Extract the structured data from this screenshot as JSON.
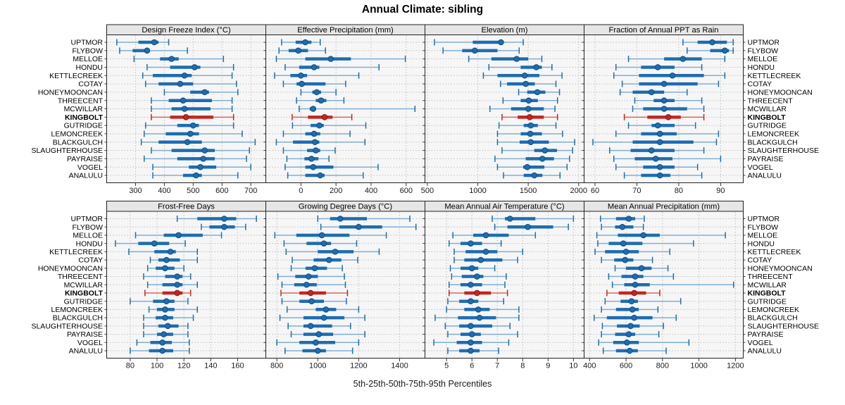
{
  "title": "Annual Climate: sibling",
  "caption": "5th-25th-50th-75th-95th Percentiles",
  "colors": {
    "blue_whisker": "#7FAFD6",
    "blue_main": "#1D6DB1",
    "blue_dot_edge": "#0F4C86",
    "red_whisker": "#D4685E",
    "red_main": "#C3261F",
    "red_dot_edge": "#8E1713",
    "gridline": "#BFBFBF",
    "strip_bg": "#E6E6E6",
    "panel_bg": "#F6F6F6",
    "border": "#222222",
    "tick": "#333333"
  },
  "chart_data": {
    "type": "table",
    "subtype": "trellis-percentile-dotplot",
    "percentile_labels": [
      "5th",
      "25th",
      "50th",
      "75th",
      "95th"
    ],
    "highlight_site": "KINGBOLT",
    "sites": [
      "UPTMOR",
      "FLYBOW",
      "MELLOE",
      "HONDU",
      "KETTLECREEK",
      "COTAY",
      "HONEYMOONCAN",
      "THREECENT",
      "MCWILLAR",
      "KINGBOLT",
      "GUTRIDGE",
      "LEMONCREEK",
      "BLACKGULCH",
      "SLAUGHTERHOUSE",
      "PAYRAISE",
      "VOGEL",
      "ANALULU"
    ],
    "panels": [
      {
        "title": "Design Freeze Index (°C)",
        "grid_row": 0,
        "grid_col": 0,
        "xlim": [
          200,
          752
        ],
        "ticks": [
          300,
          400,
          500,
          600,
          700
        ],
        "grid": [
          300,
          400,
          500,
          600,
          700
        ],
        "values": [
          [
            235,
            310,
            365,
            380,
            415
          ],
          [
            245,
            290,
            340,
            350,
            480
          ],
          [
            295,
            385,
            425,
            450,
            605
          ],
          [
            340,
            420,
            505,
            525,
            640
          ],
          [
            325,
            360,
            470,
            495,
            635
          ],
          [
            335,
            380,
            455,
            500,
            650
          ],
          [
            400,
            490,
            540,
            555,
            655
          ],
          [
            355,
            415,
            465,
            565,
            635
          ],
          [
            355,
            425,
            470,
            560,
            635
          ],
          [
            355,
            420,
            475,
            570,
            640
          ],
          [
            335,
            445,
            500,
            520,
            640
          ],
          [
            330,
            405,
            490,
            520,
            670
          ],
          [
            320,
            380,
            480,
            530,
            715
          ],
          [
            355,
            425,
            540,
            575,
            695
          ],
          [
            330,
            445,
            535,
            575,
            685
          ],
          [
            360,
            485,
            525,
            580,
            700
          ],
          [
            360,
            465,
            510,
            530,
            655
          ]
        ]
      },
      {
        "title": "Effective Precipitation (mm)",
        "grid_row": 0,
        "grid_col": 1,
        "xlim": [
          -200,
          707
        ],
        "ticks": [
          0,
          200,
          400,
          600
        ],
        "grid": [
          0,
          200,
          400,
          600
        ],
        "values": [
          [
            -110,
            -30,
            25,
            60,
            110
          ],
          [
            -125,
            -70,
            -15,
            40,
            140
          ],
          [
            -140,
            25,
            170,
            285,
            595
          ],
          [
            -90,
            -10,
            75,
            105,
            445
          ],
          [
            -150,
            -60,
            0,
            35,
            330
          ],
          [
            -100,
            -25,
            5,
            140,
            255
          ],
          [
            0,
            65,
            90,
            115,
            200
          ],
          [
            -25,
            85,
            115,
            145,
            245
          ],
          [
            -10,
            50,
            70,
            85,
            650
          ],
          [
            -50,
            40,
            135,
            180,
            290
          ],
          [
            -48,
            55,
            105,
            130,
            370
          ],
          [
            -100,
            25,
            75,
            110,
            280
          ],
          [
            -140,
            -45,
            80,
            105,
            365
          ],
          [
            -100,
            35,
            85,
            110,
            195
          ],
          [
            -80,
            20,
            60,
            100,
            160
          ],
          [
            -90,
            25,
            70,
            185,
            440
          ],
          [
            -75,
            25,
            110,
            135,
            355
          ]
        ]
      },
      {
        "title": "Elevation (m)",
        "grid_row": 0,
        "grid_col": 2,
        "xlim": [
          476,
          2054
        ],
        "ticks": [
          500,
          1000,
          1500,
          2000
        ],
        "grid": [
          500,
          1000,
          1500,
          2000
        ],
        "values": [
          [
            570,
            950,
            1230,
            1250,
            1450
          ],
          [
            655,
            845,
            970,
            1195,
            1410
          ],
          [
            910,
            1135,
            1385,
            1500,
            1635
          ],
          [
            1110,
            1425,
            1580,
            1635,
            1735
          ],
          [
            1055,
            1195,
            1465,
            1610,
            1835
          ],
          [
            1225,
            1290,
            1475,
            1565,
            1775
          ],
          [
            1405,
            1490,
            1590,
            1670,
            1810
          ],
          [
            1250,
            1425,
            1505,
            1595,
            1790
          ],
          [
            1120,
            1330,
            1500,
            1655,
            1765
          ],
          [
            1240,
            1395,
            1515,
            1655,
            1790
          ],
          [
            1210,
            1455,
            1525,
            1595,
            1775
          ],
          [
            1195,
            1425,
            1520,
            1635,
            1840
          ],
          [
            1195,
            1415,
            1525,
            1705,
            1960
          ],
          [
            1240,
            1560,
            1665,
            1785,
            1940
          ],
          [
            1170,
            1475,
            1640,
            1755,
            1910
          ],
          [
            1195,
            1450,
            1490,
            1660,
            1885
          ],
          [
            1255,
            1455,
            1560,
            1640,
            1815
          ]
        ]
      },
      {
        "title": "Fraction of Annual PPT as Rain",
        "grid_row": 0,
        "grid_col": 3,
        "xlim": [
          57.4,
          95.4
        ],
        "ticks": [
          60,
          70,
          80,
          90
        ],
        "grid": [
          60,
          70,
          80,
          90
        ],
        "values": [
          [
            81,
            84.5,
            88,
            91.5,
            93
          ],
          [
            82,
            87.5,
            91,
            92,
            93
          ],
          [
            68,
            76.5,
            81,
            85.5,
            91
          ],
          [
            65,
            71,
            75,
            79,
            85.5
          ],
          [
            64.5,
            70.5,
            78.5,
            86,
            91
          ],
          [
            66.5,
            70.5,
            76.5,
            84.5,
            89.5
          ],
          [
            66,
            69,
            73.5,
            76.5,
            82
          ],
          [
            69.5,
            74,
            76.5,
            79,
            85.5
          ],
          [
            69,
            71.5,
            76.5,
            82,
            86
          ],
          [
            67,
            72.5,
            77.5,
            80.5,
            86
          ],
          [
            68,
            73.5,
            75,
            79,
            84
          ],
          [
            65,
            71,
            75.5,
            79.5,
            89.5
          ],
          [
            59.5,
            69,
            75.5,
            83.5,
            89
          ],
          [
            63.5,
            68.5,
            73.5,
            79,
            86
          ],
          [
            64.5,
            69.5,
            74.5,
            78.5,
            90
          ],
          [
            65,
            71.5,
            75.5,
            79,
            84.5
          ],
          [
            67,
            71,
            75.5,
            78,
            85.5
          ]
        ]
      },
      {
        "title": "Frost-Free Days",
        "grid_row": 1,
        "grid_col": 0,
        "xlim": [
          62.5,
          181
        ],
        "ticks": [
          80,
          100,
          120,
          140,
          160
        ],
        "grid": [
          80,
          100,
          120,
          140,
          160,
          180
        ],
        "values": [
          [
            115,
            130,
            150,
            159,
            174
          ],
          [
            133,
            139,
            150,
            158,
            166
          ],
          [
            84,
            105,
            116,
            134,
            148
          ],
          [
            69,
            86,
            98,
            109,
            121
          ],
          [
            79,
            98,
            110,
            114,
            130
          ],
          [
            95,
            101,
            107,
            117,
            130
          ],
          [
            93,
            99,
            106,
            113,
            120
          ],
          [
            90,
            106,
            115,
            119,
            125
          ],
          [
            93,
            104,
            115,
            119,
            130
          ],
          [
            91,
            104,
            115,
            119,
            125
          ],
          [
            80,
            97,
            107,
            113,
            123
          ],
          [
            94,
            100,
            106,
            113,
            130
          ],
          [
            90,
            99,
            106,
            112,
            127
          ],
          [
            90,
            101,
            108,
            116,
            123
          ],
          [
            90,
            100,
            105,
            112,
            123
          ],
          [
            85,
            95,
            104,
            111,
            124
          ],
          [
            80,
            94,
            104,
            112,
            124
          ]
        ]
      },
      {
        "title": "Growing Degree Days (°C)",
        "grid_row": 1,
        "grid_col": 1,
        "xlim": [
          746,
          1524
        ],
        "ticks": [
          800,
          1000,
          1200,
          1400
        ],
        "grid": [
          800,
          1000,
          1200,
          1400
        ],
        "values": [
          [
            1000,
            1060,
            1110,
            1240,
            1450
          ],
          [
            1015,
            1105,
            1200,
            1315,
            1480
          ],
          [
            790,
            895,
            1020,
            1155,
            1335
          ],
          [
            835,
            945,
            1030,
            1065,
            1190
          ],
          [
            845,
            1000,
            1085,
            1175,
            1300
          ],
          [
            875,
            980,
            1055,
            1115,
            1195
          ],
          [
            870,
            940,
            985,
            1045,
            1120
          ],
          [
            805,
            890,
            955,
            1000,
            1130
          ],
          [
            825,
            885,
            945,
            995,
            1135
          ],
          [
            820,
            910,
            965,
            1040,
            1145
          ],
          [
            825,
            910,
            970,
            1030,
            1140
          ],
          [
            850,
            990,
            1040,
            1090,
            1200
          ],
          [
            815,
            930,
            1030,
            1130,
            1230
          ],
          [
            855,
            930,
            965,
            1070,
            1160
          ],
          [
            870,
            930,
            1005,
            1075,
            1230
          ],
          [
            800,
            910,
            990,
            1085,
            1200
          ],
          [
            840,
            925,
            1000,
            1040,
            1170
          ]
        ]
      },
      {
        "title": "Mean Annual Air Temperature (°C)",
        "grid_row": 1,
        "grid_col": 2,
        "xlim": [
          4.15,
          10.42
        ],
        "ticks": [
          5,
          6,
          7,
          8,
          9,
          10
        ],
        "grid": [
          5,
          6,
          7,
          8,
          9,
          10
        ],
        "values": [
          [
            6.8,
            7.3,
            7.5,
            8.5,
            10.0
          ],
          [
            6.9,
            7.4,
            8.2,
            9.2,
            9.8
          ],
          [
            5.25,
            6.05,
            6.55,
            7.45,
            8.5
          ],
          [
            5.1,
            5.55,
            5.95,
            6.4,
            7.15
          ],
          [
            5.3,
            5.75,
            6.55,
            7.0,
            8.0
          ],
          [
            5.3,
            5.7,
            6.35,
            7.2,
            7.8
          ],
          [
            5.15,
            5.55,
            6.0,
            6.25,
            6.9
          ],
          [
            5.2,
            5.6,
            6.2,
            6.45,
            7.35
          ],
          [
            5.1,
            5.55,
            5.95,
            6.4,
            7.3
          ],
          [
            5.1,
            5.7,
            6.2,
            6.75,
            7.4
          ],
          [
            5.05,
            5.5,
            5.95,
            6.25,
            7.25
          ],
          [
            5.0,
            5.7,
            6.25,
            6.7,
            7.85
          ],
          [
            4.55,
            5.45,
            6.3,
            6.95,
            7.85
          ],
          [
            4.95,
            5.5,
            5.95,
            6.8,
            7.5
          ],
          [
            5.05,
            5.55,
            6.0,
            6.35,
            7.8
          ],
          [
            4.5,
            5.4,
            5.95,
            6.4,
            7.45
          ],
          [
            5.05,
            5.5,
            5.95,
            6.3,
            7.05
          ]
        ]
      },
      {
        "title": "Mean Annual Precipitation (mm)",
        "grid_row": 1,
        "grid_col": 3,
        "xlim": [
          370,
          1243
        ],
        "ticks": [
          400,
          600,
          800,
          1000,
          1200
        ],
        "grid": [
          400,
          600,
          800,
          1000,
          1200
        ],
        "values": [
          [
            460,
            545,
            615,
            650,
            700
          ],
          [
            465,
            540,
            580,
            640,
            695
          ],
          [
            440,
            555,
            695,
            785,
            1145
          ],
          [
            445,
            505,
            585,
            690,
            970
          ],
          [
            430,
            485,
            600,
            670,
            840
          ],
          [
            465,
            535,
            595,
            640,
            745
          ],
          [
            540,
            600,
            685,
            740,
            830
          ],
          [
            505,
            575,
            650,
            695,
            860
          ],
          [
            525,
            590,
            650,
            730,
            1190
          ],
          [
            495,
            560,
            645,
            710,
            785
          ],
          [
            485,
            570,
            630,
            665,
            900
          ],
          [
            465,
            545,
            635,
            670,
            775
          ],
          [
            425,
            495,
            645,
            745,
            875
          ],
          [
            470,
            550,
            625,
            675,
            805
          ],
          [
            465,
            540,
            615,
            650,
            780
          ],
          [
            450,
            530,
            605,
            670,
            945
          ],
          [
            475,
            545,
            620,
            665,
            820
          ]
        ]
      }
    ]
  }
}
